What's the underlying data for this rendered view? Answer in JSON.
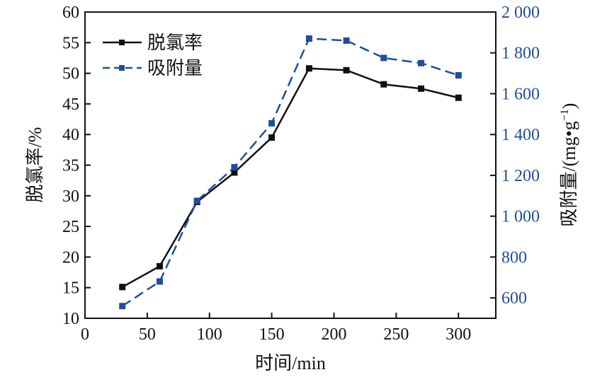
{
  "chart_data": {
    "type": "line",
    "x": [
      30,
      60,
      90,
      120,
      150,
      180,
      210,
      240,
      270,
      300
    ],
    "xlabel": "时间/min",
    "xlim": [
      0,
      330
    ],
    "xticks": [
      0,
      50,
      100,
      150,
      200,
      250,
      300
    ],
    "y_left": {
      "label": "脱氯率/%",
      "ylim": [
        10,
        60
      ],
      "ticks": [
        10,
        15,
        20,
        25,
        30,
        35,
        40,
        45,
        50,
        55,
        60
      ]
    },
    "y_right": {
      "label_main": "吸附量/(mg•g",
      "label_sup": "−1",
      "label_tail": ")",
      "ylim": [
        500,
        2000
      ],
      "ticks": [
        600,
        800,
        1000,
        1200,
        1400,
        1600,
        1800,
        2000
      ],
      "tick_labels": [
        "600",
        "800",
        "1 000",
        "1 200",
        "1 400",
        "1 600",
        "1 800",
        "2 000"
      ],
      "color": "#1f4e9c"
    },
    "series": [
      {
        "name": "脱氯率",
        "axis": "left",
        "color": "#111111",
        "style": "solid",
        "values": [
          15.1,
          18.5,
          29.0,
          33.8,
          39.5,
          50.8,
          50.5,
          48.2,
          47.5,
          46.0
        ]
      },
      {
        "name": "吸附量",
        "axis": "right",
        "color": "#1f4e9c",
        "style": "dashed",
        "values": [
          560,
          680,
          1075,
          1240,
          1455,
          1870,
          1860,
          1775,
          1750,
          1690
        ]
      }
    ],
    "grid": false,
    "legend": "top-left"
  }
}
